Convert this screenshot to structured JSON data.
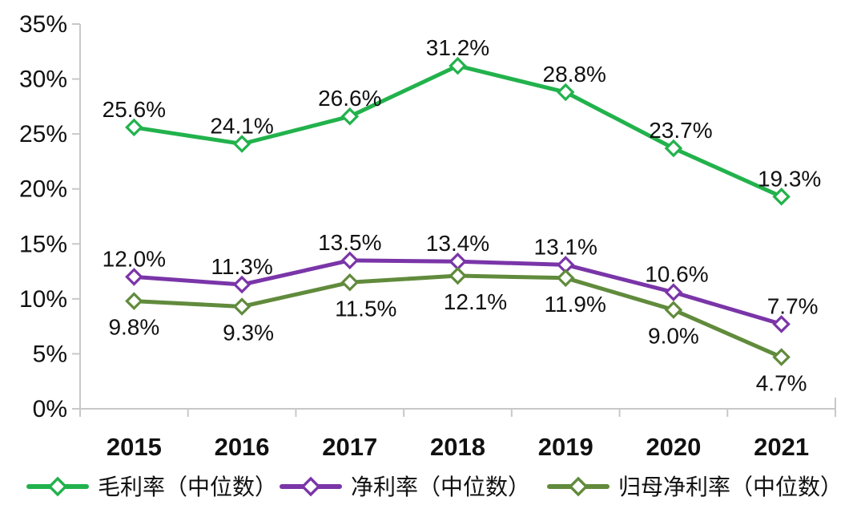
{
  "chart_data": {
    "type": "line",
    "title": "",
    "xlabel": "",
    "ylabel": "",
    "categories": [
      "2015",
      "2016",
      "2017",
      "2018",
      "2019",
      "2020",
      "2021"
    ],
    "series": [
      {
        "name": "毛利率（中位数）",
        "values": [
          25.6,
          24.1,
          26.6,
          31.2,
          28.8,
          23.7,
          19.3
        ],
        "labels": [
          "25.6%",
          "24.1%",
          "26.6%",
          "31.2%",
          "28.8%",
          "23.7%",
          "19.3%"
        ],
        "color": "#22B24C",
        "marker": "diamond-open",
        "label_position": "above",
        "label_dx": [
          0,
          0,
          0,
          0,
          11,
          9,
          10
        ]
      },
      {
        "name": "净利率（中位数）",
        "values": [
          12.0,
          11.3,
          13.5,
          13.4,
          13.1,
          10.6,
          7.7
        ],
        "labels": [
          "12.0%",
          "11.3%",
          "13.5%",
          "13.4%",
          "13.1%",
          "10.6%",
          "7.7%"
        ],
        "color": "#7A35A8",
        "marker": "diamond-open",
        "label_position": "above",
        "label_dx": [
          0,
          0,
          0,
          0,
          0,
          4,
          14
        ]
      },
      {
        "name": "归母净利率（中位数）",
        "values": [
          9.8,
          9.3,
          11.5,
          12.1,
          11.9,
          9.0,
          4.7
        ],
        "labels": [
          "9.8%",
          "9.3%",
          "11.5%",
          "12.1%",
          "11.9%",
          "9.0%",
          "4.7%"
        ],
        "color": "#618B3C",
        "marker": "diamond-open",
        "label_position": "below",
        "label_dx": [
          0,
          8,
          20,
          22,
          12,
          0,
          0
        ]
      }
    ],
    "y_axis": {
      "min": 0,
      "max": 35,
      "step": 5,
      "ticks": [
        "0%",
        "5%",
        "10%",
        "15%",
        "20%",
        "25%",
        "30%",
        "35%"
      ]
    },
    "grid": false,
    "legend_position": "bottom",
    "colors": {
      "axis_line": "#C8C8C8",
      "text": "#111111",
      "background": "#FFFFFF",
      "marker_fill": "#FFFFFF"
    }
  }
}
